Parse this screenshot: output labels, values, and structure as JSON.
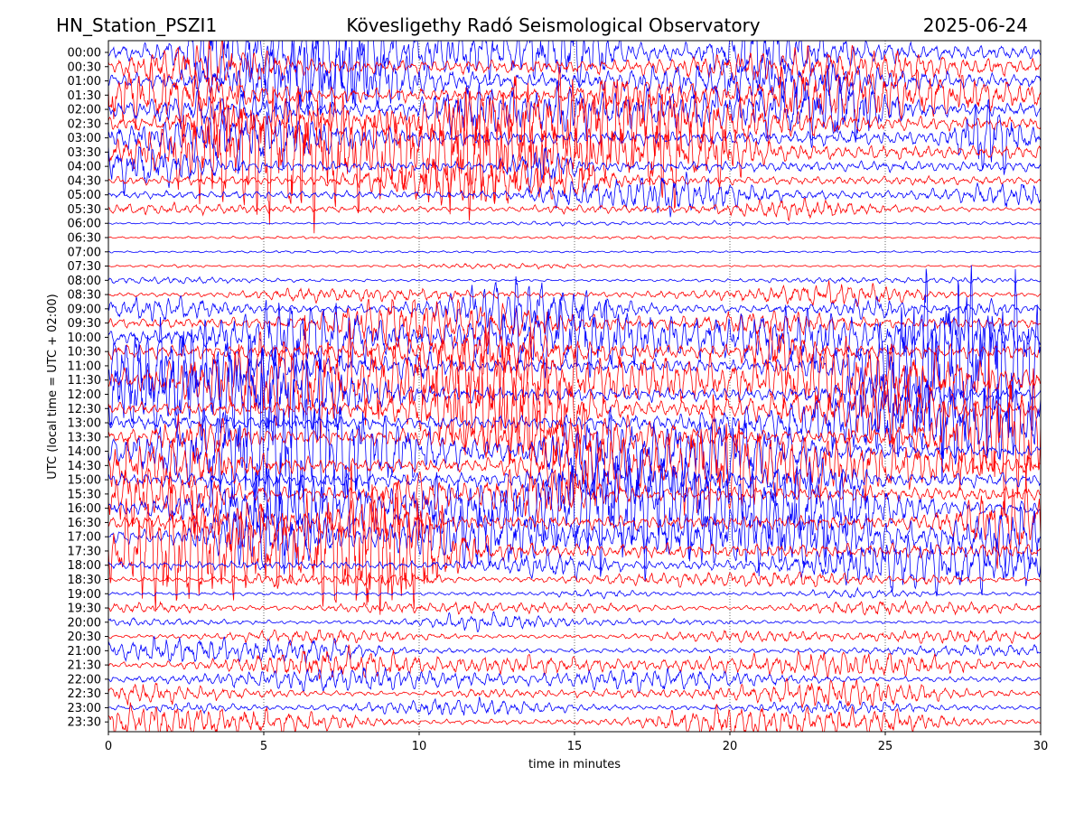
{
  "header": {
    "left": "HN_Station_PSZI1",
    "center": "Kövesligethy Radó Seismological Observatory",
    "right": "2025-06-24"
  },
  "chart_data": {
    "type": "line",
    "title": "Kövesligethy Radó Seismological Observatory",
    "xlabel": "time in minutes",
    "ylabel": "UTC (local time = UTC + 02:00)",
    "xlim": [
      0,
      30
    ],
    "x_ticks": [
      0,
      5,
      10,
      15,
      20,
      25,
      30
    ],
    "grid": "vertical dotted lines at 5-minute intervals",
    "trace_colors": [
      "#0000ff",
      "#ff0000"
    ],
    "rows": [
      "00:00",
      "00:30",
      "01:00",
      "01:30",
      "02:00",
      "02:30",
      "03:00",
      "03:30",
      "04:00",
      "04:30",
      "05:00",
      "05:30",
      "06:00",
      "06:30",
      "07:00",
      "07:30",
      "08:00",
      "08:30",
      "09:00",
      "09:30",
      "10:00",
      "10:30",
      "11:00",
      "11:30",
      "12:00",
      "12:30",
      "13:00",
      "13:30",
      "14:00",
      "14:30",
      "15:00",
      "15:30",
      "16:00",
      "16:30",
      "17:00",
      "17:30",
      "18:00",
      "18:30",
      "19:00",
      "19:30",
      "20:00",
      "20:30",
      "21:00",
      "21:30",
      "22:00",
      "22:30",
      "23:00",
      "23:30"
    ],
    "activity_level": [
      1.0,
      1.0,
      1.0,
      1.0,
      1.0,
      1.0,
      1.0,
      1.0,
      0.85,
      0.75,
      0.7,
      0.35,
      0.15,
      0.12,
      0.12,
      0.15,
      0.25,
      0.45,
      0.7,
      0.85,
      1.0,
      1.0,
      1.0,
      1.0,
      1.0,
      1.0,
      1.0,
      1.0,
      1.0,
      1.0,
      1.0,
      1.0,
      1.0,
      1.0,
      1.0,
      1.0,
      0.75,
      0.5,
      0.4,
      0.35,
      0.3,
      0.4,
      0.5,
      0.55,
      0.55,
      0.45,
      0.45,
      0.5
    ]
  }
}
